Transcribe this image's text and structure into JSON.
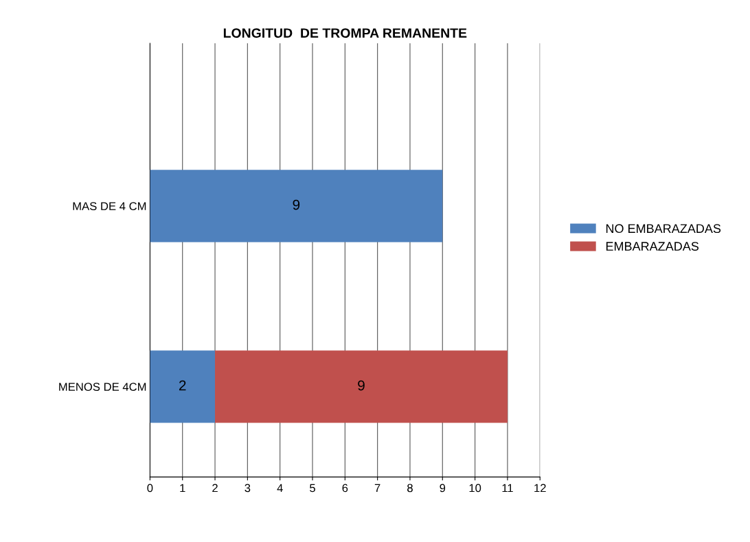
{
  "chart_data": {
    "type": "bar",
    "orientation": "horizontal",
    "stacked": true,
    "title": "LONGITUD  DE TROMPA REMANENTE",
    "categories": [
      "MAS DE 4 CM",
      "MENOS DE 4CM"
    ],
    "series": [
      {
        "name": "NO EMBARAZADAS",
        "color": "#4f81bd",
        "values": [
          9,
          2
        ]
      },
      {
        "name": "EMBARAZADAS",
        "color": "#c0504d",
        "values": [
          null,
          9
        ]
      }
    ],
    "xlim": [
      0,
      12
    ],
    "xticks": [
      0,
      1,
      2,
      3,
      4,
      5,
      6,
      7,
      8,
      9,
      10,
      11,
      12
    ],
    "grid": "x",
    "legend": "right",
    "data_labels": true
  }
}
